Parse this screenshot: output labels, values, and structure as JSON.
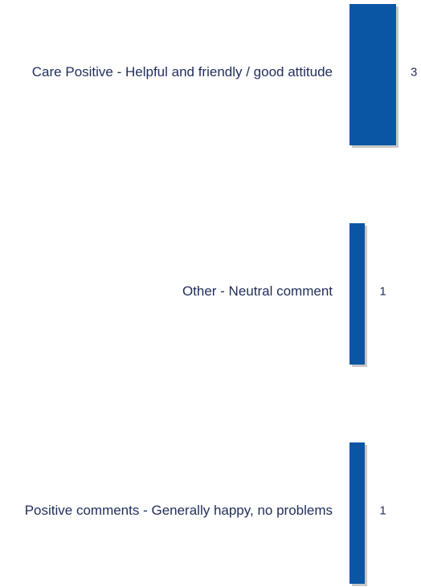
{
  "chart_data": {
    "type": "barh",
    "categories": [
      "Care Positive - Helpful and friendly / good attitude",
      "Other - Neutral comment",
      "Positive comments - Generally happy, no problems"
    ],
    "values": [
      3,
      1,
      1
    ],
    "color": "#0b56a4"
  }
}
